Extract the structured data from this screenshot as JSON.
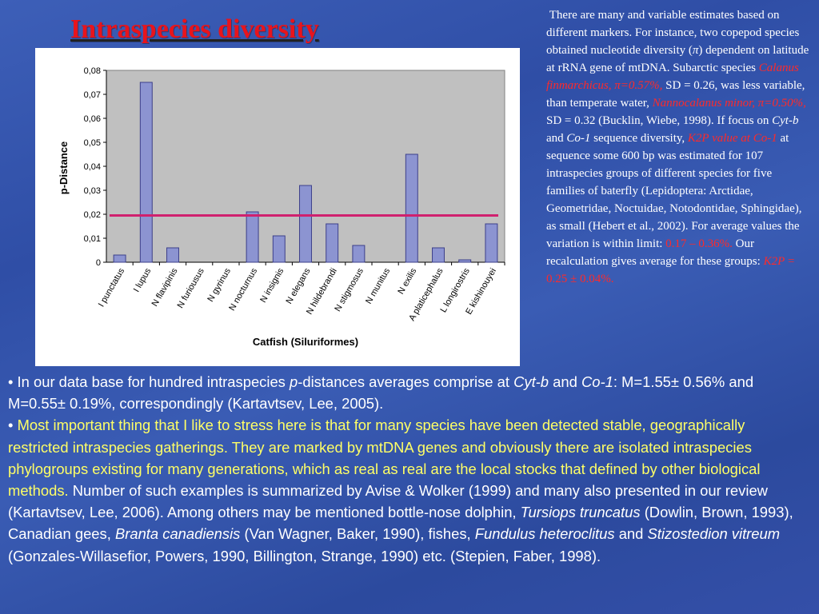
{
  "title": "Intraspecies diversity",
  "colors": {
    "title": "#e8141c",
    "bar_fill": "#8c94d1",
    "bar_stroke": "#3c3f8a",
    "plot_bg": "#c0c0c0",
    "threshold_line": "#d0206e",
    "highlight_text": "#ffff66",
    "red_text": "#ff2a2a"
  },
  "side_text": {
    "s1": "There are many and variable estimates based on different markers. For instance, two copepod species obtained nucleotide diversity (",
    "pi": "π",
    "s2": ") dependent on latitude at rRNA gene of mtDNA. Subarctic species ",
    "calanus": "Calanus finmarchicus,",
    "calanus_val": " π=0.57%,",
    "s3": " SD = 0.26, was less variable, than temperate water, ",
    "nanno": "Nannocalanus minor,",
    "nanno_val": " π=0.50%,",
    "s4": " SD = 0.32 (Bucklin, Wiebe, 1998). If focus on ",
    "cytb": "Cyt-b",
    "and": " and ",
    "co1": "Co-1",
    "s5": " sequence diversity, ",
    "k2p": "K2P value at Co-1",
    "s6": " at sequence some 600 bp was estimated for 107 intraspecies groups of different species for five families of  baterfly (Lepidoptera: Arctidae, Geometridae, Noctuidae, Notodontidae, Sphingidae), as small (Hebert et al., 2002). For average values the variation is within limit: ",
    "limit": "0.17 – 0.36%.",
    "s7": " Our recalculation gives average for these groups: ",
    "k2p_avg_label": "K2P",
    "k2p_avg": " = 0.25 ± 0.04%."
  },
  "bottom_text": {
    "b1": "• In our data base for hundred intraspecies ",
    "p": "p",
    "b2": "-distances averages comprise at ",
    "cytb": "Cyt-b",
    "and": " and ",
    "co1": "Co-1",
    "b3": ": M=1.55± 0.56% and M=0.55± 0.19%, correspondingly (Kartavtsev, Lee, 2005).",
    "b4_bullet": "• ",
    "b4_yellow": "Most important thing that I like to stress here is that for many species have been detected stable, geographically restricted intraspecies gatherings. They are marked by mtDNA genes and obviously there are isolated intraspecies phylogroups existing for many generations, which as real as real are the local stocks that defined by other biological methods.",
    "b5": " Number of such examples is summarized by Avise & Wolker (1999) and many also presented in our review (Kartavtsev, Lee, 2006). Among others may be mentioned bottle-nose dolphin, ",
    "tursiops": "Tursiops truncatus",
    "b6": " (Dowlin, Brown, 1993), Canadian gees, ",
    "branta": "Branta canadiensis",
    "b7": " (Van Wagner, Baker, 1990), fishes, ",
    "fundulus": "Fundulus heteroclitus",
    "b8": " and ",
    "stizostedion": "Stizostedion vitreum",
    "b9": " (Gonzales-Willasefior, Powers, 1990, Billington, Strange, 1990) etc. (Stepien, Faber, 1998)."
  },
  "chart_data": {
    "type": "bar",
    "categories": [
      "I punctatus",
      "I lupus",
      "N flavipinis",
      "N furiousus",
      "N gyrinus",
      "N nocturnus",
      "N insignis",
      "N elegans",
      "N hildebrandi",
      "N stigmosus",
      "N munitus",
      "N exilis",
      "A platicephalus",
      "L longirostris",
      "E kishinouyei"
    ],
    "values": [
      0.003,
      0.075,
      0.006,
      0,
      0,
      0.021,
      0.011,
      0.032,
      0.016,
      0.007,
      0,
      0.045,
      0.006,
      0.001,
      0.016
    ],
    "threshold": 0.0195,
    "ylim": [
      0,
      0.08
    ],
    "yticks": [
      "0",
      "0,01",
      "0,02",
      "0,03",
      "0,04",
      "0,05",
      "0,06",
      "0,07",
      "0,08"
    ],
    "xlabel": "Catfish (Siluriformes)",
    "ylabel": "p-Distance",
    "grid": false
  }
}
